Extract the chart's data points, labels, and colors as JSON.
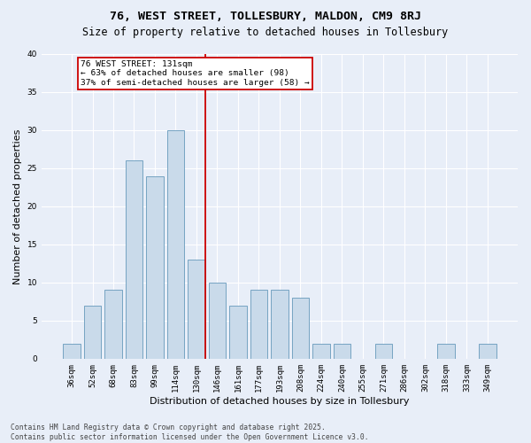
{
  "title1": "76, WEST STREET, TOLLESBURY, MALDON, CM9 8RJ",
  "title2": "Size of property relative to detached houses in Tollesbury",
  "xlabel": "Distribution of detached houses by size in Tollesbury",
  "ylabel": "Number of detached properties",
  "bar_labels": [
    "36sqm",
    "52sqm",
    "68sqm",
    "83sqm",
    "99sqm",
    "114sqm",
    "130sqm",
    "146sqm",
    "161sqm",
    "177sqm",
    "193sqm",
    "208sqm",
    "224sqm",
    "240sqm",
    "255sqm",
    "271sqm",
    "286sqm",
    "302sqm",
    "318sqm",
    "333sqm",
    "349sqm"
  ],
  "bar_values": [
    2,
    7,
    9,
    26,
    24,
    30,
    13,
    10,
    7,
    9,
    9,
    8,
    2,
    2,
    0,
    2,
    0,
    0,
    2,
    0,
    2
  ],
  "bar_color": "#c9daea",
  "bar_edge_color": "#6699bb",
  "vline_color": "#cc0000",
  "annotation_text": "76 WEST STREET: 131sqm\n← 63% of detached houses are smaller (98)\n37% of semi-detached houses are larger (58) →",
  "annotation_box_color": "#ffffff",
  "annotation_box_edge": "#cc0000",
  "footer": "Contains HM Land Registry data © Crown copyright and database right 2025.\nContains public sector information licensed under the Open Government Licence v3.0.",
  "ylim": [
    0,
    40
  ],
  "yticks": [
    0,
    5,
    10,
    15,
    20,
    25,
    30,
    35,
    40
  ],
  "fig_bg_color": "#e8eef8",
  "plot_bg_color": "#e8eef8",
  "title_fontsize": 9.5,
  "subtitle_fontsize": 8.5,
  "tick_fontsize": 6.5,
  "ylabel_fontsize": 8,
  "xlabel_fontsize": 8,
  "annotation_fontsize": 6.8,
  "footer_fontsize": 5.8
}
